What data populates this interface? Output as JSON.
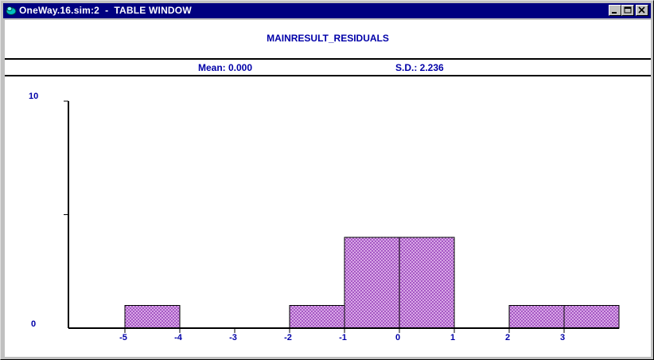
{
  "window": {
    "title": "OneWay.16.sim:2  -  TABLE WINDOW",
    "buttons": [
      "minimize",
      "maximize",
      "close"
    ]
  },
  "header": {
    "title": "MAINRESULT_RESIDUALS",
    "mean_text": "Mean: 0.000",
    "sd_text": "S.D.: 2.236"
  },
  "chart_data": {
    "type": "bar",
    "title": "MAINRESULT_RESIDUALS",
    "bins": [
      {
        "start": -5,
        "end": -4,
        "count": 1
      },
      {
        "start": -2,
        "end": -1,
        "count": 1
      },
      {
        "start": -1,
        "end": 0,
        "count": 4
      },
      {
        "start": 0,
        "end": 1,
        "count": 4
      },
      {
        "start": 2,
        "end": 3,
        "count": 1
      },
      {
        "start": 3,
        "end": 4,
        "count": 1
      }
    ],
    "x_ticks": [
      -5,
      -4,
      -3,
      -2,
      -1,
      0,
      1,
      2,
      3
    ],
    "x_tick_labels": [
      "-5",
      "-4",
      "-3",
      "-2",
      "-1",
      "0",
      "1",
      "2",
      "3"
    ],
    "y_tick_labels": [
      "0",
      "10"
    ],
    "ylim": [
      0,
      10
    ],
    "xlim": [
      -5,
      4
    ],
    "bar_fill": "#cc88dd",
    "bar_hatch": "#9944bb",
    "axis_color": "#000000",
    "label_color": "#0000a8"
  }
}
